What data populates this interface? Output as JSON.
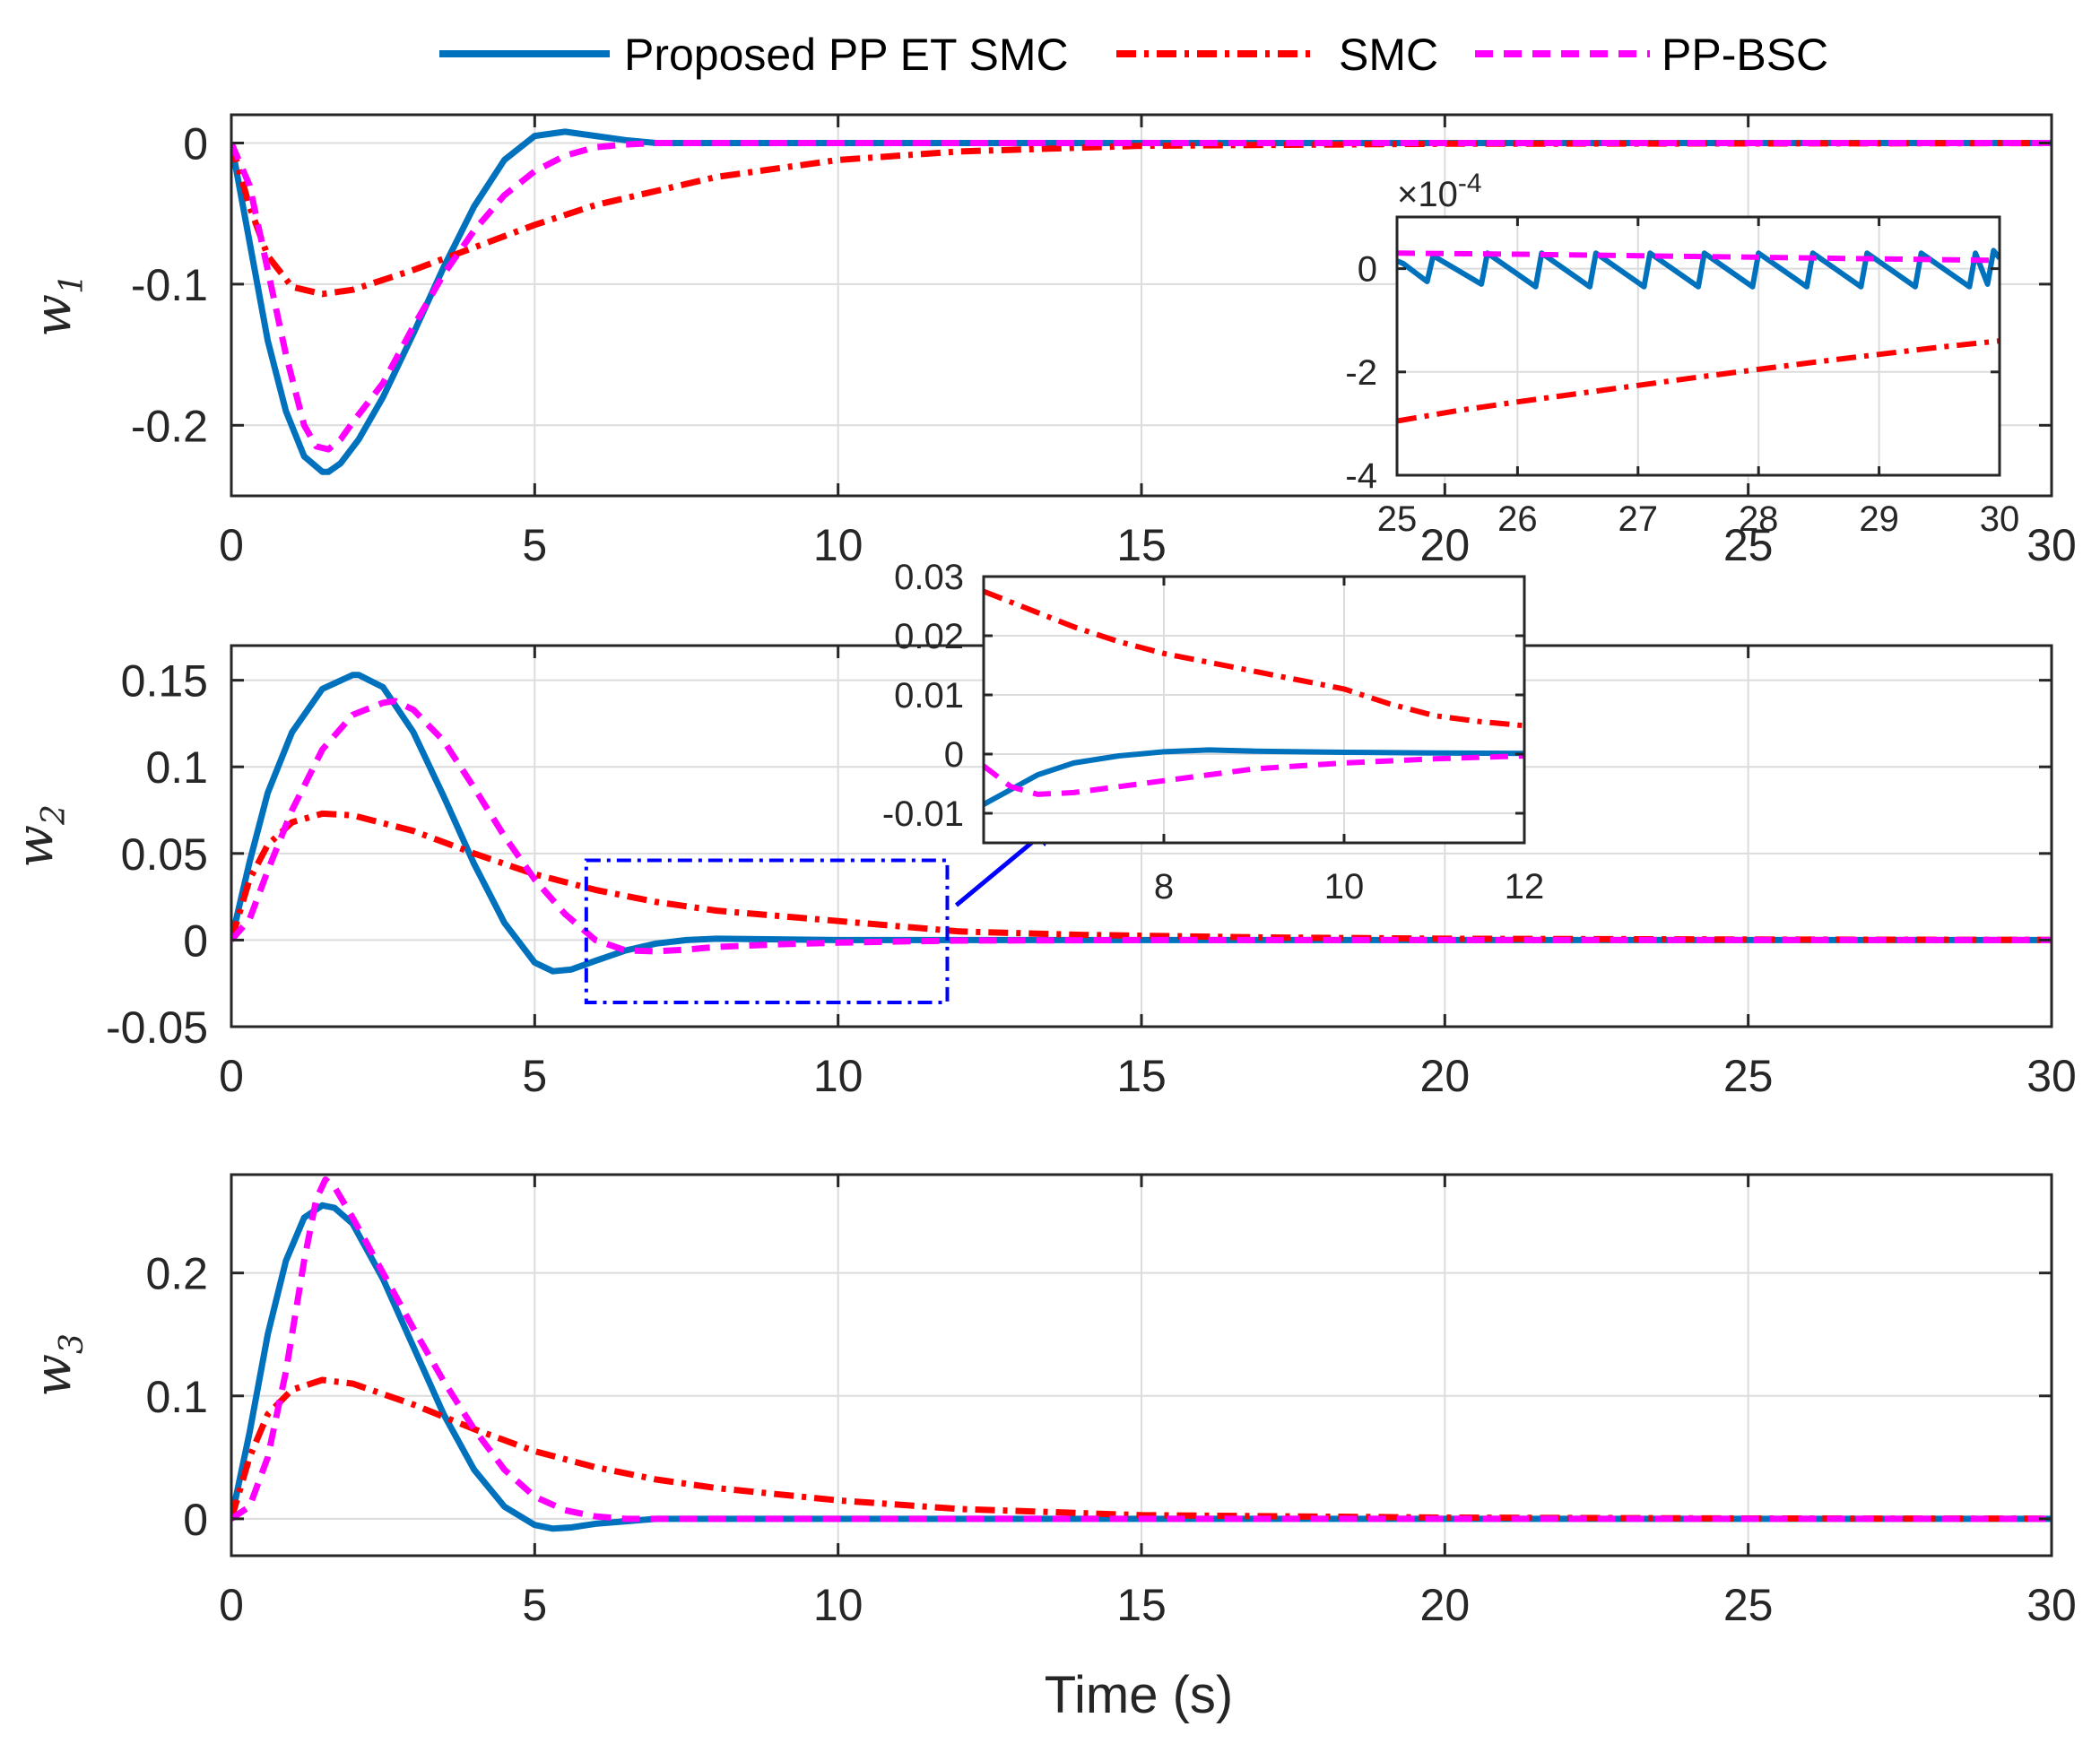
{
  "chart_data": {
    "type": "line",
    "xlabel": "Time (s)",
    "colors": {
      "proposed": "#0072BD",
      "smc": "#FF0000",
      "ppbsc": "#FF00FF",
      "box": "#0000FF",
      "grid": "#dcdcdc",
      "axis": "#262626"
    },
    "legend": {
      "placement": "top",
      "entries": [
        {
          "key": "proposed",
          "label": "Proposed PP ET SMC",
          "style": "solid"
        },
        {
          "key": "smc",
          "label": "SMC",
          "style": "dash-dot"
        },
        {
          "key": "ppbsc",
          "label": "PP-BSC",
          "style": "dashed"
        }
      ]
    },
    "panels": [
      {
        "ylabel": "w",
        "ysub": "1",
        "xlim": [
          0,
          30
        ],
        "ylim": [
          -0.25,
          0.02
        ],
        "xticks": [
          0,
          5,
          10,
          15,
          20,
          25,
          30
        ],
        "xticklabels": [
          "0",
          "5",
          "10",
          "15",
          "20",
          "25",
          "30"
        ],
        "yticks": [
          0,
          -0.1,
          -0.2
        ],
        "yticklabels": [
          "0",
          "-0.1",
          "-0.2"
        ],
        "series": [
          {
            "key": "proposed",
            "x": [
              0,
              0.3,
              0.6,
              0.9,
              1.2,
              1.5,
              1.6,
              1.8,
              2.1,
              2.5,
              3.0,
              3.5,
              4.0,
              4.5,
              5.0,
              5.5,
              6.0,
              6.5,
              7.0,
              8.0,
              30
            ],
            "y": [
              0,
              -0.07,
              -0.14,
              -0.19,
              -0.222,
              -0.233,
              -0.233,
              -0.227,
              -0.21,
              -0.18,
              -0.135,
              -0.088,
              -0.045,
              -0.012,
              0.005,
              0.008,
              0.005,
              0.002,
              0.0,
              0.0,
              0.0
            ]
          },
          {
            "key": "smc",
            "x": [
              0,
              0.3,
              0.6,
              1.0,
              1.5,
              2.0,
              3.0,
              4.0,
              5.0,
              6.0,
              8.0,
              10.0,
              12.0,
              15.0,
              20.0,
              25.0,
              30.0
            ],
            "y": [
              0,
              -0.045,
              -0.08,
              -0.102,
              -0.107,
              -0.104,
              -0.09,
              -0.074,
              -0.058,
              -0.044,
              -0.024,
              -0.012,
              -0.006,
              -0.002,
              -0.0005,
              -0.0003,
              -0.0001
            ]
          },
          {
            "key": "ppbsc",
            "x": [
              0,
              0.3,
              0.6,
              0.9,
              1.2,
              1.4,
              1.6,
              1.8,
              2.0,
              2.5,
              3.0,
              3.5,
              4.0,
              4.5,
              5.0,
              5.5,
              6.0,
              6.5,
              7.0,
              30
            ],
            "y": [
              0,
              -0.03,
              -0.09,
              -0.15,
              -0.2,
              -0.215,
              -0.217,
              -0.21,
              -0.198,
              -0.17,
              -0.13,
              -0.093,
              -0.062,
              -0.037,
              -0.02,
              -0.009,
              -0.003,
              -0.001,
              0.0,
              0.0
            ]
          }
        ],
        "inset": {
          "xlim": [
            25,
            30
          ],
          "ylim": [
            -4,
            1
          ],
          "xticks": [
            25,
            26,
            27,
            28,
            29,
            30
          ],
          "xticklabels": [
            "25",
            "26",
            "27",
            "28",
            "29",
            "30"
          ],
          "yticks": [
            0,
            -2,
            -4
          ],
          "yticklabels": [
            "0",
            "-2",
            "-4"
          ],
          "exponent": "×10",
          "exponent_power": "-4",
          "series": [
            {
              "key": "proposed",
              "x": [
                25,
                25.05,
                25.25,
                25.3,
                25.7,
                25.75,
                26.15,
                26.2,
                26.6,
                26.65,
                27.05,
                27.1,
                27.5,
                27.55,
                27.95,
                28.0,
                28.4,
                28.45,
                28.85,
                28.9,
                29.3,
                29.35,
                29.75,
                29.8,
                29.9,
                29.95,
                30
              ],
              "y": [
                0.15,
                0.1,
                -0.25,
                0.25,
                -0.3,
                0.3,
                -0.35,
                0.3,
                -0.35,
                0.3,
                -0.35,
                0.3,
                -0.35,
                0.3,
                -0.35,
                0.3,
                -0.35,
                0.3,
                -0.35,
                0.3,
                -0.35,
                0.3,
                -0.35,
                0.3,
                -0.3,
                0.35,
                0.2
              ]
            },
            {
              "key": "smc",
              "x": [
                25,
                25.5,
                26,
                26.5,
                27,
                27.5,
                28,
                28.5,
                29,
                29.5,
                30
              ],
              "y": [
                -2.95,
                -2.75,
                -2.58,
                -2.42,
                -2.26,
                -2.1,
                -1.95,
                -1.8,
                -1.66,
                -1.52,
                -1.4
              ]
            },
            {
              "key": "ppbsc",
              "x": [
                25,
                26,
                27,
                28,
                29,
                30
              ],
              "y": [
                0.3,
                0.28,
                0.25,
                0.22,
                0.19,
                0.16
              ]
            }
          ]
        }
      },
      {
        "ylabel": "w",
        "ysub": "2",
        "xlim": [
          0,
          30
        ],
        "ylim": [
          -0.05,
          0.17
        ],
        "xticks": [
          0,
          5,
          10,
          15,
          20,
          25,
          30
        ],
        "xticklabels": [
          "0",
          "5",
          "10",
          "15",
          "20",
          "25",
          "30"
        ],
        "yticks": [
          0.15,
          0.1,
          0.05,
          0,
          -0.05
        ],
        "yticklabels": [
          "0.15",
          "0.1",
          "0.05",
          "0",
          "-0.05"
        ],
        "series": [
          {
            "key": "proposed",
            "x": [
              0,
              0.3,
              0.6,
              1.0,
              1.5,
              2.0,
              2.1,
              2.5,
              3.0,
              3.5,
              4.0,
              4.5,
              5.0,
              5.3,
              5.6,
              6.0,
              6.5,
              7.0,
              7.5,
              8.0,
              9.0,
              10.0,
              30
            ],
            "y": [
              0,
              0.045,
              0.085,
              0.12,
              0.145,
              0.153,
              0.153,
              0.146,
              0.12,
              0.083,
              0.044,
              0.01,
              -0.013,
              -0.018,
              -0.017,
              -0.012,
              -0.006,
              -0.002,
              0.0,
              0.0008,
              0.0004,
              0.0,
              0.0
            ]
          },
          {
            "key": "smc",
            "x": [
              0,
              0.3,
              0.6,
              1.0,
              1.5,
              2.0,
              3.0,
              4.0,
              5.0,
              6.0,
              7.0,
              8.0,
              9.0,
              10.0,
              11.0,
              12.0,
              14.0,
              17.0,
              20.0,
              25.0,
              30.0
            ],
            "y": [
              0,
              0.035,
              0.055,
              0.068,
              0.073,
              0.072,
              0.063,
              0.05,
              0.038,
              0.029,
              0.022,
              0.017,
              0.014,
              0.011,
              0.008,
              0.005,
              0.003,
              0.0015,
              0.0008,
              0.0003,
              0.0001
            ]
          },
          {
            "key": "ppbsc",
            "x": [
              0,
              0.3,
              0.6,
              1.0,
              1.5,
              2.0,
              2.5,
              2.7,
              3.0,
              3.5,
              4.0,
              4.5,
              5.0,
              5.5,
              6.0,
              6.5,
              7.0,
              7.5,
              8.0,
              9.0,
              10.0,
              11.0,
              12.0,
              15.0,
              30.0
            ],
            "y": [
              0,
              0.012,
              0.04,
              0.075,
              0.11,
              0.13,
              0.137,
              0.138,
              0.133,
              0.115,
              0.088,
              0.06,
              0.035,
              0.015,
              0.0,
              -0.006,
              -0.0065,
              -0.0055,
              -0.004,
              -0.0025,
              -0.0015,
              -0.0008,
              -0.0003,
              0.0,
              0.0
            ]
          }
        ],
        "zoom_box": {
          "xlim": [
            5.85,
            11.8
          ],
          "ylim": [
            -0.036,
            0.046
          ]
        },
        "inset": {
          "xlim": [
            6,
            12
          ],
          "ylim": [
            -0.015,
            0.03
          ],
          "xticks": [
            8,
            10,
            12
          ],
          "xticklabels": [
            "8",
            "10",
            "12"
          ],
          "yticks": [
            0.03,
            0.02,
            0.01,
            0,
            -0.01
          ],
          "yticklabels": [
            "0.03",
            "0.02",
            "0.01",
            "0",
            "-0.01"
          ],
          "series": [
            {
              "key": "proposed",
              "x": [
                6,
                6.3,
                6.6,
                7.0,
                7.5,
                8.0,
                8.5,
                9.0,
                10.0,
                11.0,
                12.0
              ],
              "y": [
                -0.0085,
                -0.006,
                -0.0035,
                -0.0015,
                -0.0003,
                0.0004,
                0.0007,
                0.0005,
                0.0003,
                0.0002,
                0.0001
              ]
            },
            {
              "key": "smc",
              "x": [
                6,
                6.5,
                7.0,
                7.5,
                8.0,
                8.5,
                9.0,
                9.5,
                10.0,
                10.5,
                11.0,
                11.5,
                12.0
              ],
              "y": [
                0.0275,
                0.0245,
                0.0215,
                0.019,
                0.017,
                0.0155,
                0.014,
                0.0125,
                0.011,
                0.0085,
                0.0065,
                0.0055,
                0.0048
              ]
            },
            {
              "key": "ppbsc",
              "x": [
                6,
                6.3,
                6.6,
                7.0,
                7.5,
                8.0,
                8.5,
                9.0,
                10.0,
                11.0,
                12.0
              ],
              "y": [
                -0.002,
                -0.0055,
                -0.0068,
                -0.0065,
                -0.0055,
                -0.0045,
                -0.0035,
                -0.0025,
                -0.0015,
                -0.0008,
                -0.0003
              ]
            }
          ]
        }
      },
      {
        "ylabel": "w",
        "ysub": "3",
        "xlim": [
          0,
          30
        ],
        "ylim": [
          -0.03,
          0.28
        ],
        "xticks": [
          0,
          5,
          10,
          15,
          20,
          25,
          30
        ],
        "xticklabels": [
          "0",
          "5",
          "10",
          "15",
          "20",
          "25",
          "30"
        ],
        "yticks": [
          0.2,
          0.1,
          0
        ],
        "yticklabels": [
          "0.2",
          "0.1",
          "0"
        ],
        "series": [
          {
            "key": "proposed",
            "x": [
              0,
              0.3,
              0.6,
              0.9,
              1.2,
              1.5,
              1.7,
              2.0,
              2.5,
              3.0,
              3.5,
              4.0,
              4.5,
              5.0,
              5.3,
              5.6,
              6.0,
              6.5,
              7.0,
              8.0,
              30
            ],
            "y": [
              0,
              0.07,
              0.15,
              0.21,
              0.245,
              0.255,
              0.253,
              0.24,
              0.195,
              0.14,
              0.085,
              0.04,
              0.01,
              -0.005,
              -0.008,
              -0.007,
              -0.004,
              -0.002,
              0.0,
              0.0,
              0.0
            ]
          },
          {
            "key": "smc",
            "x": [
              0,
              0.3,
              0.6,
              1.0,
              1.5,
              2.0,
              3.0,
              4.0,
              5.0,
              6.0,
              7.0,
              8.0,
              10.0,
              12.0,
              15.0,
              20.0,
              25.0,
              30.0
            ],
            "y": [
              0,
              0.05,
              0.085,
              0.105,
              0.113,
              0.11,
              0.093,
              0.073,
              0.055,
              0.042,
              0.032,
              0.025,
              0.015,
              0.008,
              0.003,
              0.001,
              0.0003,
              0.0001
            ]
          },
          {
            "key": "ppbsc",
            "x": [
              0,
              0.3,
              0.6,
              0.9,
              1.2,
              1.4,
              1.55,
              1.7,
              2.0,
              2.5,
              3.0,
              3.5,
              4.0,
              4.5,
              5.0,
              5.5,
              6.0,
              6.5,
              7.0,
              30.0
            ],
            "y": [
              0,
              0.01,
              0.05,
              0.12,
              0.21,
              0.26,
              0.276,
              0.27,
              0.245,
              0.2,
              0.155,
              0.112,
              0.073,
              0.04,
              0.018,
              0.007,
              0.002,
              0.0,
              0.0,
              0.0
            ]
          }
        ]
      }
    ]
  }
}
